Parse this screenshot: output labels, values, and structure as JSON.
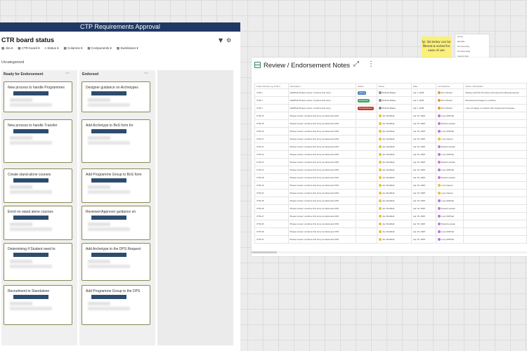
{
  "header": {
    "title": "CTP Requirements Approval"
  },
  "board": {
    "title": "CTR board status",
    "toolbar": [
      "Jira",
      "CTR board",
      "Status",
      "Columns",
      "Components",
      "Swimlanes"
    ],
    "uncategorized": "Uncategorized",
    "columns": [
      {
        "title": "Ready for Endorsement",
        "cards": [
          "New process to handle Programmes",
          "New process to handle Transfer",
          "Create stand-alone courses",
          "Enrol on stand alone courses",
          "Determining if Student need to",
          "Recruitment to Standalone"
        ]
      },
      {
        "title": "Endorsed",
        "cards": [
          "Designer guidance on Archetypes",
          "Add Archetype to BoS form for",
          "Add Programme Group to BoS form",
          "Reviewer/Approver guidance on",
          "Add Archetype to the DPS Request",
          "Add Programme Group to the DPS"
        ]
      }
    ]
  },
  "sticky": {
    "text": "fyi, list below can be filtered & sorted for ease of use"
  },
  "minipanel": {
    "items": [
      "Sort by",
      "Edit table",
      "Sort ascending",
      "Sort descending",
      "Group by field"
    ]
  },
  "panel": {
    "title": "Review / Endorsement Notes",
    "columns": [
      "Ticket Number eg 'CTR-1'",
      "Description",
      "Status",
      "Name",
      "Date",
      "For Attention",
      "Notes / Description"
    ],
    "rows": [
      [
        "CTR-1",
        "SAMPLE Please review / endorse this story...",
        "Query",
        "Richard Bailey",
        "Apr 1, 2025",
        "Dim Worder",
        "Please read this Jira Story and raise the following queries"
      ],
      [
        "CTR-1",
        "SAMPLE Please review / endorse this story...",
        "Endorsed",
        "Richard Bailey",
        "Apr 1, 2025",
        "Dim Worder",
        "Reviewed and happy to endorse"
      ],
      [
        "CTR-1",
        "SAMPLE Please review / endorse this story...",
        "Not Endorsed",
        "Richard Bailey",
        "Apr 1, 2025",
        "Dim Worder",
        "I am not happy to endorse this requirement because..."
      ],
      [
        "CTR-13",
        "Please review / endorse this story as discussed 15/4",
        "",
        "Joe Sheffield",
        "Apr 15, 2025",
        "Lucy McPhail",
        ""
      ],
      [
        "CTR-15",
        "Please review / endorse this story as discussed 15/4",
        "",
        "Joe Sheffield",
        "Apr 15, 2025",
        "Daniel Lamata",
        ""
      ],
      [
        "CTR-16",
        "Please review / endorse this story as discussed 15/4",
        "",
        "Joe Sheffield",
        "Apr 15, 2025",
        "Lucy McPhail",
        ""
      ],
      [
        "CTR-17",
        "Please review / endorse this story as discussed 15/4",
        "",
        "Joe Sheffield",
        "Apr 15, 2025",
        "Lucy Gawen",
        ""
      ],
      [
        "CTR-11",
        "Please review / endorse this story as discussed 15/4",
        "",
        "Joe Sheffield",
        "Apr 15, 2025",
        "Daniel Lamata",
        ""
      ],
      [
        "CTR-12",
        "Please review / endorse this story as discussed 15/4",
        "",
        "Joe Sheffield",
        "Apr 15, 2025",
        "Lucy McPhail",
        ""
      ],
      [
        "CTR-13",
        "Please review / endorse this story as discussed 15/4",
        "",
        "Joe Sheffield",
        "Apr 15, 2025",
        "Daniel Lamata",
        ""
      ],
      [
        "CTR-14",
        "Please review / endorse this story as discussed 15/4",
        "",
        "Joe Sheffield",
        "Apr 15, 2025",
        "Lucy McPhail",
        ""
      ],
      [
        "CTR-18",
        "Please review / endorse this story as discussed 15/4",
        "",
        "Joe Sheffield",
        "Apr 15, 2025",
        "Daniel Lamata",
        ""
      ],
      [
        "CTR-19",
        "Please review / endorse this story as discussed 15/4",
        "",
        "Joe Sheffield",
        "Apr 15, 2025",
        "Lucy Gawen",
        ""
      ],
      [
        "CTR-24",
        "Please review / endorse this story as discussed 15/4",
        "",
        "Joe Sheffield",
        "Apr 15, 2025",
        "Lucy Gawen",
        ""
      ],
      [
        "CTR-25",
        "Please review / endorse this story as discussed 15/4",
        "",
        "Joe Sheffield",
        "Apr 15, 2025",
        "Lucy McPhail",
        ""
      ],
      [
        "CTR-26",
        "Please review / endorse this story as discussed 15/4",
        "",
        "Joe Sheffield",
        "Apr 15, 2025",
        "Daniel Lamata",
        ""
      ],
      [
        "CTR-27",
        "Please review / endorse this story as discussed 15/4",
        "",
        "Joe Sheffield",
        "Apr 15, 2025",
        "Lucy McPhail",
        ""
      ],
      [
        "CTR-29",
        "Please review / endorse this story as discussed 15/4",
        "",
        "Joe Sheffield",
        "Apr 15, 2025",
        "Daniel Lamata",
        ""
      ],
      [
        "CTR-30",
        "Please review / endorse this story as discussed 15/4",
        "",
        "Joe Sheffield",
        "Apr 15, 2025",
        "Lucy McPhail",
        ""
      ],
      [
        "CTR-31",
        "Please review / endorse this story as discussed 15/4",
        "",
        "Joe Sheffield",
        "Apr 15, 2025",
        "Lucy McPhail",
        ""
      ]
    ]
  },
  "colors": {
    "header": "#1f3864",
    "query": "#4f81bd",
    "endorsed": "#3ea55b",
    "not_endorsed": "#c0392b",
    "sticky": "#faf07a"
  }
}
